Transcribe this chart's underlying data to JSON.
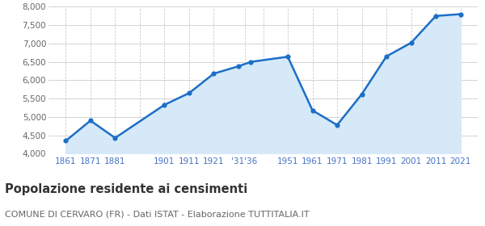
{
  "years": [
    1861,
    1871,
    1881,
    1901,
    1911,
    1921,
    1931,
    1936,
    1951,
    1961,
    1971,
    1981,
    1991,
    2001,
    2011,
    2021
  ],
  "population": [
    4350,
    4900,
    4430,
    5330,
    5650,
    6180,
    6380,
    6500,
    6640,
    5180,
    4780,
    5620,
    6650,
    7020,
    7750,
    7800
  ],
  "x_labels": [
    "1861",
    "1871",
    "1881",
    "",
    "1901",
    "1911",
    "1921",
    "'31'36",
    "",
    "1951",
    "1961",
    "1971",
    "1981",
    "1991",
    "2001",
    "2011",
    "2021"
  ],
  "x_tick_years": [
    1861,
    1871,
    1881,
    1891,
    1901,
    1911,
    1921,
    1933.5,
    1941,
    1951,
    1961,
    1971,
    1981,
    1991,
    2001,
    2011,
    2021
  ],
  "line_color": "#1c6ec7",
  "fill_color": "#d6e9f8",
  "marker_color": "#1c6ec7",
  "background_color": "#ffffff",
  "grid_color": "#cccccc",
  "ylim": [
    4000,
    8000
  ],
  "yticks": [
    4000,
    4500,
    5000,
    5500,
    6000,
    6500,
    7000,
    7500,
    8000
  ],
  "title": "Popolazione residente ai censimenti",
  "subtitle": "COMUNE DI CERVARO (FR) - Dati ISTAT - Elaborazione TUTTITALIA.IT",
  "title_fontsize": 10.5,
  "subtitle_fontsize": 8,
  "tick_label_color": "#4472c4",
  "tick_label_color_y": "#666666",
  "xlim_left": 1854,
  "xlim_right": 2028
}
